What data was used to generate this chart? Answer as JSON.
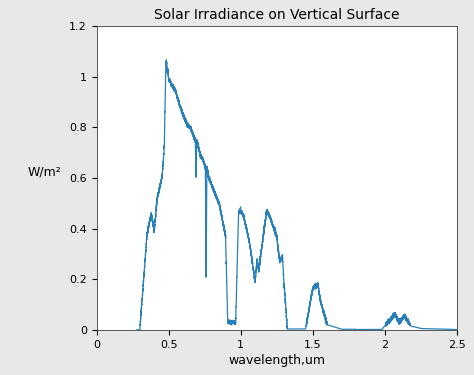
{
  "title": "Solar Irradiance on Vertical Surface",
  "xlabel": "wavelength,um",
  "ylabel": "W/m²",
  "xlim": [
    0,
    2.5
  ],
  "ylim": [
    0,
    1.2
  ],
  "xticks": [
    0,
    0.5,
    1.0,
    1.5,
    2.0,
    2.5
  ],
  "yticks": [
    0,
    0.2,
    0.4,
    0.6,
    0.8,
    1.0,
    1.2
  ],
  "line_color": "#2980B9",
  "fig_background": "#E8E8E8",
  "ax_background": "#FFFFFF",
  "title_fontsize": 10,
  "label_fontsize": 9,
  "tick_fontsize": 8,
  "linewidth": 0.9
}
